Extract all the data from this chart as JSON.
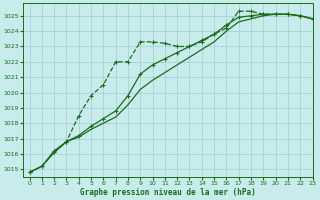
{
  "title": "Graphe pression niveau de la mer (hPa)",
  "xlim": [
    -0.5,
    23
  ],
  "ylim": [
    1014.5,
    1025.8
  ],
  "yticks": [
    1015,
    1016,
    1017,
    1018,
    1019,
    1020,
    1021,
    1022,
    1023,
    1024,
    1025
  ],
  "xticks": [
    0,
    1,
    2,
    3,
    4,
    5,
    6,
    7,
    8,
    9,
    10,
    11,
    12,
    13,
    14,
    15,
    16,
    17,
    18,
    19,
    20,
    21,
    22,
    23
  ],
  "background_color": "#c8ecec",
  "grid_color": "#9ecece",
  "line_color": "#1a6b1a",
  "line1_x": [
    0,
    1,
    2,
    3,
    4,
    5,
    6,
    7,
    8,
    9,
    10,
    11,
    12,
    13,
    14,
    15,
    16,
    17,
    18,
    19,
    20,
    21,
    22,
    23
  ],
  "line1_y": [
    1014.8,
    1015.2,
    1016.1,
    1016.8,
    1018.5,
    1019.8,
    1020.5,
    1022.0,
    1022.0,
    1023.3,
    1023.3,
    1023.2,
    1023.0,
    1023.0,
    1023.3,
    1023.8,
    1024.2,
    1025.3,
    1025.3,
    1025.1,
    1025.1,
    1025.1,
    1025.0,
    1024.8
  ],
  "line2_x": [
    0,
    1,
    2,
    3,
    4,
    5,
    6,
    7,
    8,
    9,
    10,
    11,
    12,
    13,
    14,
    15,
    16,
    17,
    18,
    19,
    20,
    21,
    22,
    23
  ],
  "line2_y": [
    1014.8,
    1015.2,
    1016.2,
    1016.8,
    1017.2,
    1017.8,
    1018.3,
    1018.8,
    1019.8,
    1021.2,
    1021.8,
    1022.2,
    1022.6,
    1023.0,
    1023.4,
    1023.8,
    1024.4,
    1024.9,
    1025.0,
    1025.1,
    1025.1,
    1025.1,
    1025.0,
    1024.8
  ],
  "line3_x": [
    0,
    1,
    2,
    3,
    4,
    5,
    6,
    7,
    8,
    9,
    10,
    11,
    12,
    13,
    14,
    15,
    16,
    17,
    18,
    19,
    20,
    21,
    22,
    23
  ],
  "line3_y": [
    1014.8,
    1015.2,
    1016.1,
    1016.8,
    1017.1,
    1017.6,
    1018.0,
    1018.4,
    1019.2,
    1020.2,
    1020.8,
    1021.3,
    1021.8,
    1022.3,
    1022.8,
    1023.3,
    1024.0,
    1024.6,
    1024.8,
    1025.0,
    1025.1,
    1025.1,
    1025.0,
    1024.8
  ]
}
